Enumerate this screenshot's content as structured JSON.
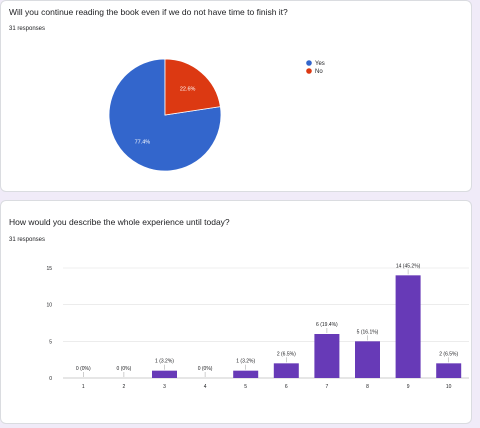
{
  "question1": {
    "title": "Will you continue reading the book even if we do not have time to finish it?",
    "responses": "31 responses"
  },
  "question2": {
    "title": "How would you describe the whole experience until today?",
    "responses": "31 responses"
  },
  "colors": {
    "blue": "#3366cc",
    "red": "#dc3912",
    "purple": "#673ab7",
    "page_bg": "#f0ebf8"
  },
  "chart_data": [
    {
      "type": "pie",
      "labels": [
        "Yes",
        "No"
      ],
      "values": [
        77.4,
        22.6
      ],
      "slice_labels": [
        "77.4%",
        "22.6%"
      ],
      "colors": [
        "#3366cc",
        "#dc3912"
      ],
      "legend": "right"
    },
    {
      "type": "bar",
      "categories": [
        "1",
        "2",
        "3",
        "4",
        "5",
        "6",
        "7",
        "8",
        "9",
        "10"
      ],
      "values": [
        0,
        0,
        1,
        0,
        1,
        2,
        6,
        5,
        14,
        2
      ],
      "data_labels": [
        "0 (0%)",
        "0 (0%)",
        "1 (3.2%)",
        "0 (0%)",
        "1 (3.2%)",
        "2 (6.5%)",
        "6 (19.4%)",
        "5 (16.1%)",
        "14 (45.2%)",
        "2 (6.5%)"
      ],
      "yticks": [
        "0",
        "5",
        "10",
        "15"
      ],
      "ylim": [
        0,
        15
      ],
      "color": "#673ab7",
      "grid": true
    }
  ]
}
